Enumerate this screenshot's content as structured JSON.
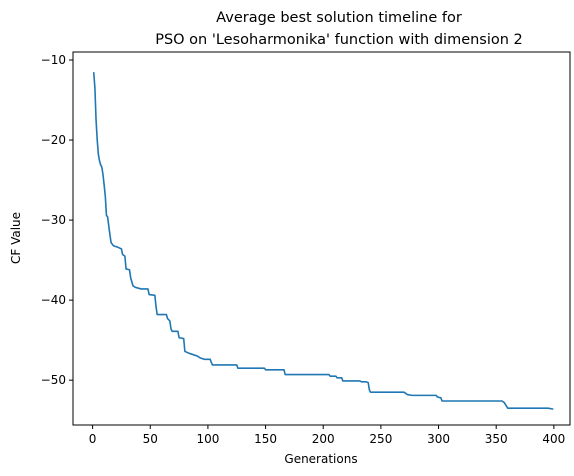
{
  "chart_data": {
    "type": "line",
    "title_lines": [
      "Average best solution timeline for",
      "PSO on 'Lesoharmonika' function with dimension 2"
    ],
    "xlabel": "Generations",
    "ylabel": "CF Value",
    "xlim": [
      -17,
      414
    ],
    "ylim": [
      -55.6,
      -9.0
    ],
    "xticks": [
      0,
      50,
      100,
      150,
      200,
      250,
      300,
      350,
      400
    ],
    "yticks": [
      -10,
      -20,
      -30,
      -40,
      -50
    ],
    "ytick_labels": [
      "−10",
      "−20",
      "−30",
      "−40",
      "−50"
    ],
    "grid": false,
    "series": [
      {
        "color": "#1f77b4",
        "points": [
          [
            1,
            -11.6
          ],
          [
            2,
            -13.5
          ],
          [
            3,
            -17.5
          ],
          [
            4,
            -20.0
          ],
          [
            5,
            -21.8
          ],
          [
            6,
            -22.6
          ],
          [
            7,
            -23.1
          ],
          [
            8,
            -23.4
          ],
          [
            9,
            -24.3
          ],
          [
            10,
            -25.6
          ],
          [
            11,
            -27.0
          ],
          [
            12,
            -29.4
          ],
          [
            13,
            -29.6
          ],
          [
            15,
            -31.8
          ],
          [
            16,
            -32.8
          ],
          [
            18,
            -33.2
          ],
          [
            20,
            -33.3
          ],
          [
            22,
            -33.4
          ],
          [
            25,
            -33.6
          ],
          [
            26,
            -34.3
          ],
          [
            28,
            -34.5
          ],
          [
            29,
            -36.1
          ],
          [
            32,
            -36.2
          ],
          [
            33,
            -37.2
          ],
          [
            35,
            -38.2
          ],
          [
            37,
            -38.4
          ],
          [
            42,
            -38.6
          ],
          [
            48,
            -38.6
          ],
          [
            49,
            -39.3
          ],
          [
            54,
            -39.4
          ],
          [
            55,
            -40.8
          ],
          [
            56,
            -41.8
          ],
          [
            64,
            -41.8
          ],
          [
            65,
            -42.3
          ],
          [
            67,
            -42.6
          ],
          [
            68,
            -43.6
          ],
          [
            69,
            -43.9
          ],
          [
            74,
            -43.9
          ],
          [
            75,
            -44.7
          ],
          [
            79,
            -44.8
          ],
          [
            80,
            -46.4
          ],
          [
            83,
            -46.6
          ],
          [
            87,
            -46.8
          ],
          [
            91,
            -47.0
          ],
          [
            93,
            -47.2
          ],
          [
            97,
            -47.4
          ],
          [
            102,
            -47.4
          ],
          [
            103,
            -47.8
          ],
          [
            104,
            -48.1
          ],
          [
            110,
            -48.1
          ],
          [
            125,
            -48.1
          ],
          [
            126,
            -48.5
          ],
          [
            149,
            -48.5
          ],
          [
            150,
            -48.7
          ],
          [
            166,
            -48.7
          ],
          [
            167,
            -49.3
          ],
          [
            190,
            -49.3
          ],
          [
            205,
            -49.3
          ],
          [
            206,
            -49.5
          ],
          [
            211,
            -49.5
          ],
          [
            212,
            -49.7
          ],
          [
            216,
            -49.7
          ],
          [
            217,
            -50.1
          ],
          [
            232,
            -50.1
          ],
          [
            233,
            -50.2
          ],
          [
            237,
            -50.2
          ],
          [
            239,
            -50.3
          ],
          [
            240,
            -51.2
          ],
          [
            241,
            -51.5
          ],
          [
            270,
            -51.5
          ],
          [
            273,
            -51.8
          ],
          [
            277,
            -51.9
          ],
          [
            290,
            -51.9
          ],
          [
            298,
            -51.9
          ],
          [
            299,
            -52.1
          ],
          [
            302,
            -52.2
          ],
          [
            303,
            -52.6
          ],
          [
            330,
            -52.6
          ],
          [
            355,
            -52.6
          ],
          [
            357,
            -52.8
          ],
          [
            360,
            -53.5
          ],
          [
            395,
            -53.5
          ],
          [
            399,
            -53.6
          ]
        ]
      }
    ]
  }
}
